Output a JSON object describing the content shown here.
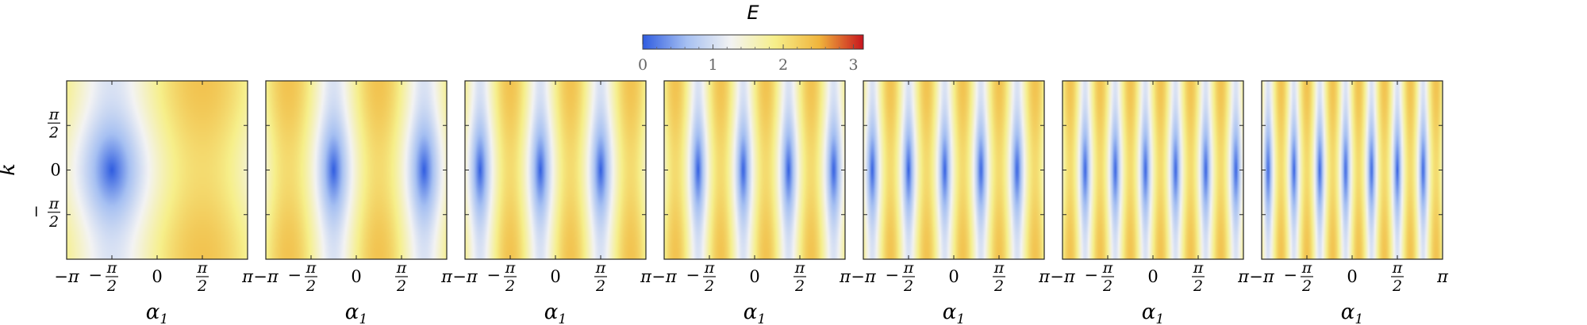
{
  "chart_data": {
    "type": "heatmap",
    "colorbar": {
      "label": "E",
      "ticks": [
        "0",
        "1",
        "2",
        "3"
      ],
      "tick_values": [
        0,
        1,
        2,
        3
      ],
      "range": [
        0,
        3.14
      ],
      "colors": [
        "#2f5ce0",
        "#a6c0f2",
        "#f3f3f3",
        "#f6ef8a",
        "#f0b43c",
        "#c8141e"
      ]
    },
    "ylabel": "k",
    "yticks": [
      {
        "value": 1.5708,
        "num": "π",
        "den": "2",
        "sign": ""
      },
      {
        "value": 0,
        "num": "0",
        "den": "",
        "sign": ""
      },
      {
        "value": -1.5708,
        "num": "π",
        "den": "2",
        "sign": "−"
      }
    ],
    "xticks": [
      {
        "value": -3.1416,
        "num": "π",
        "den": "",
        "sign": "−"
      },
      {
        "value": -1.5708,
        "num": "π",
        "den": "2",
        "sign": "−"
      },
      {
        "value": 0,
        "num": "0",
        "den": "",
        "sign": ""
      },
      {
        "value": 1.5708,
        "num": "π",
        "den": "2",
        "sign": ""
      },
      {
        "value": 3.1416,
        "num": "π",
        "den": "",
        "sign": ""
      }
    ],
    "xlim": [
      -3.1416,
      3.1416
    ],
    "ylim": [
      -3.1416,
      3.1416
    ],
    "panels": [
      {
        "xlabel_main": "α",
        "xlabel_sub": "1",
        "n": 1
      },
      {
        "xlabel_main": "α",
        "xlabel_sub": "1",
        "n": 2
      },
      {
        "xlabel_main": "α",
        "xlabel_sub": "1",
        "n": 3
      },
      {
        "xlabel_main": "α",
        "xlabel_sub": "1",
        "n": 4
      },
      {
        "xlabel_main": "α",
        "xlabel_sub": "1",
        "n": 5
      },
      {
        "xlabel_main": "α",
        "xlabel_sub": "1",
        "n": 6
      },
      {
        "xlabel_main": "α",
        "xlabel_sub": "1",
        "n": 7
      }
    ]
  }
}
